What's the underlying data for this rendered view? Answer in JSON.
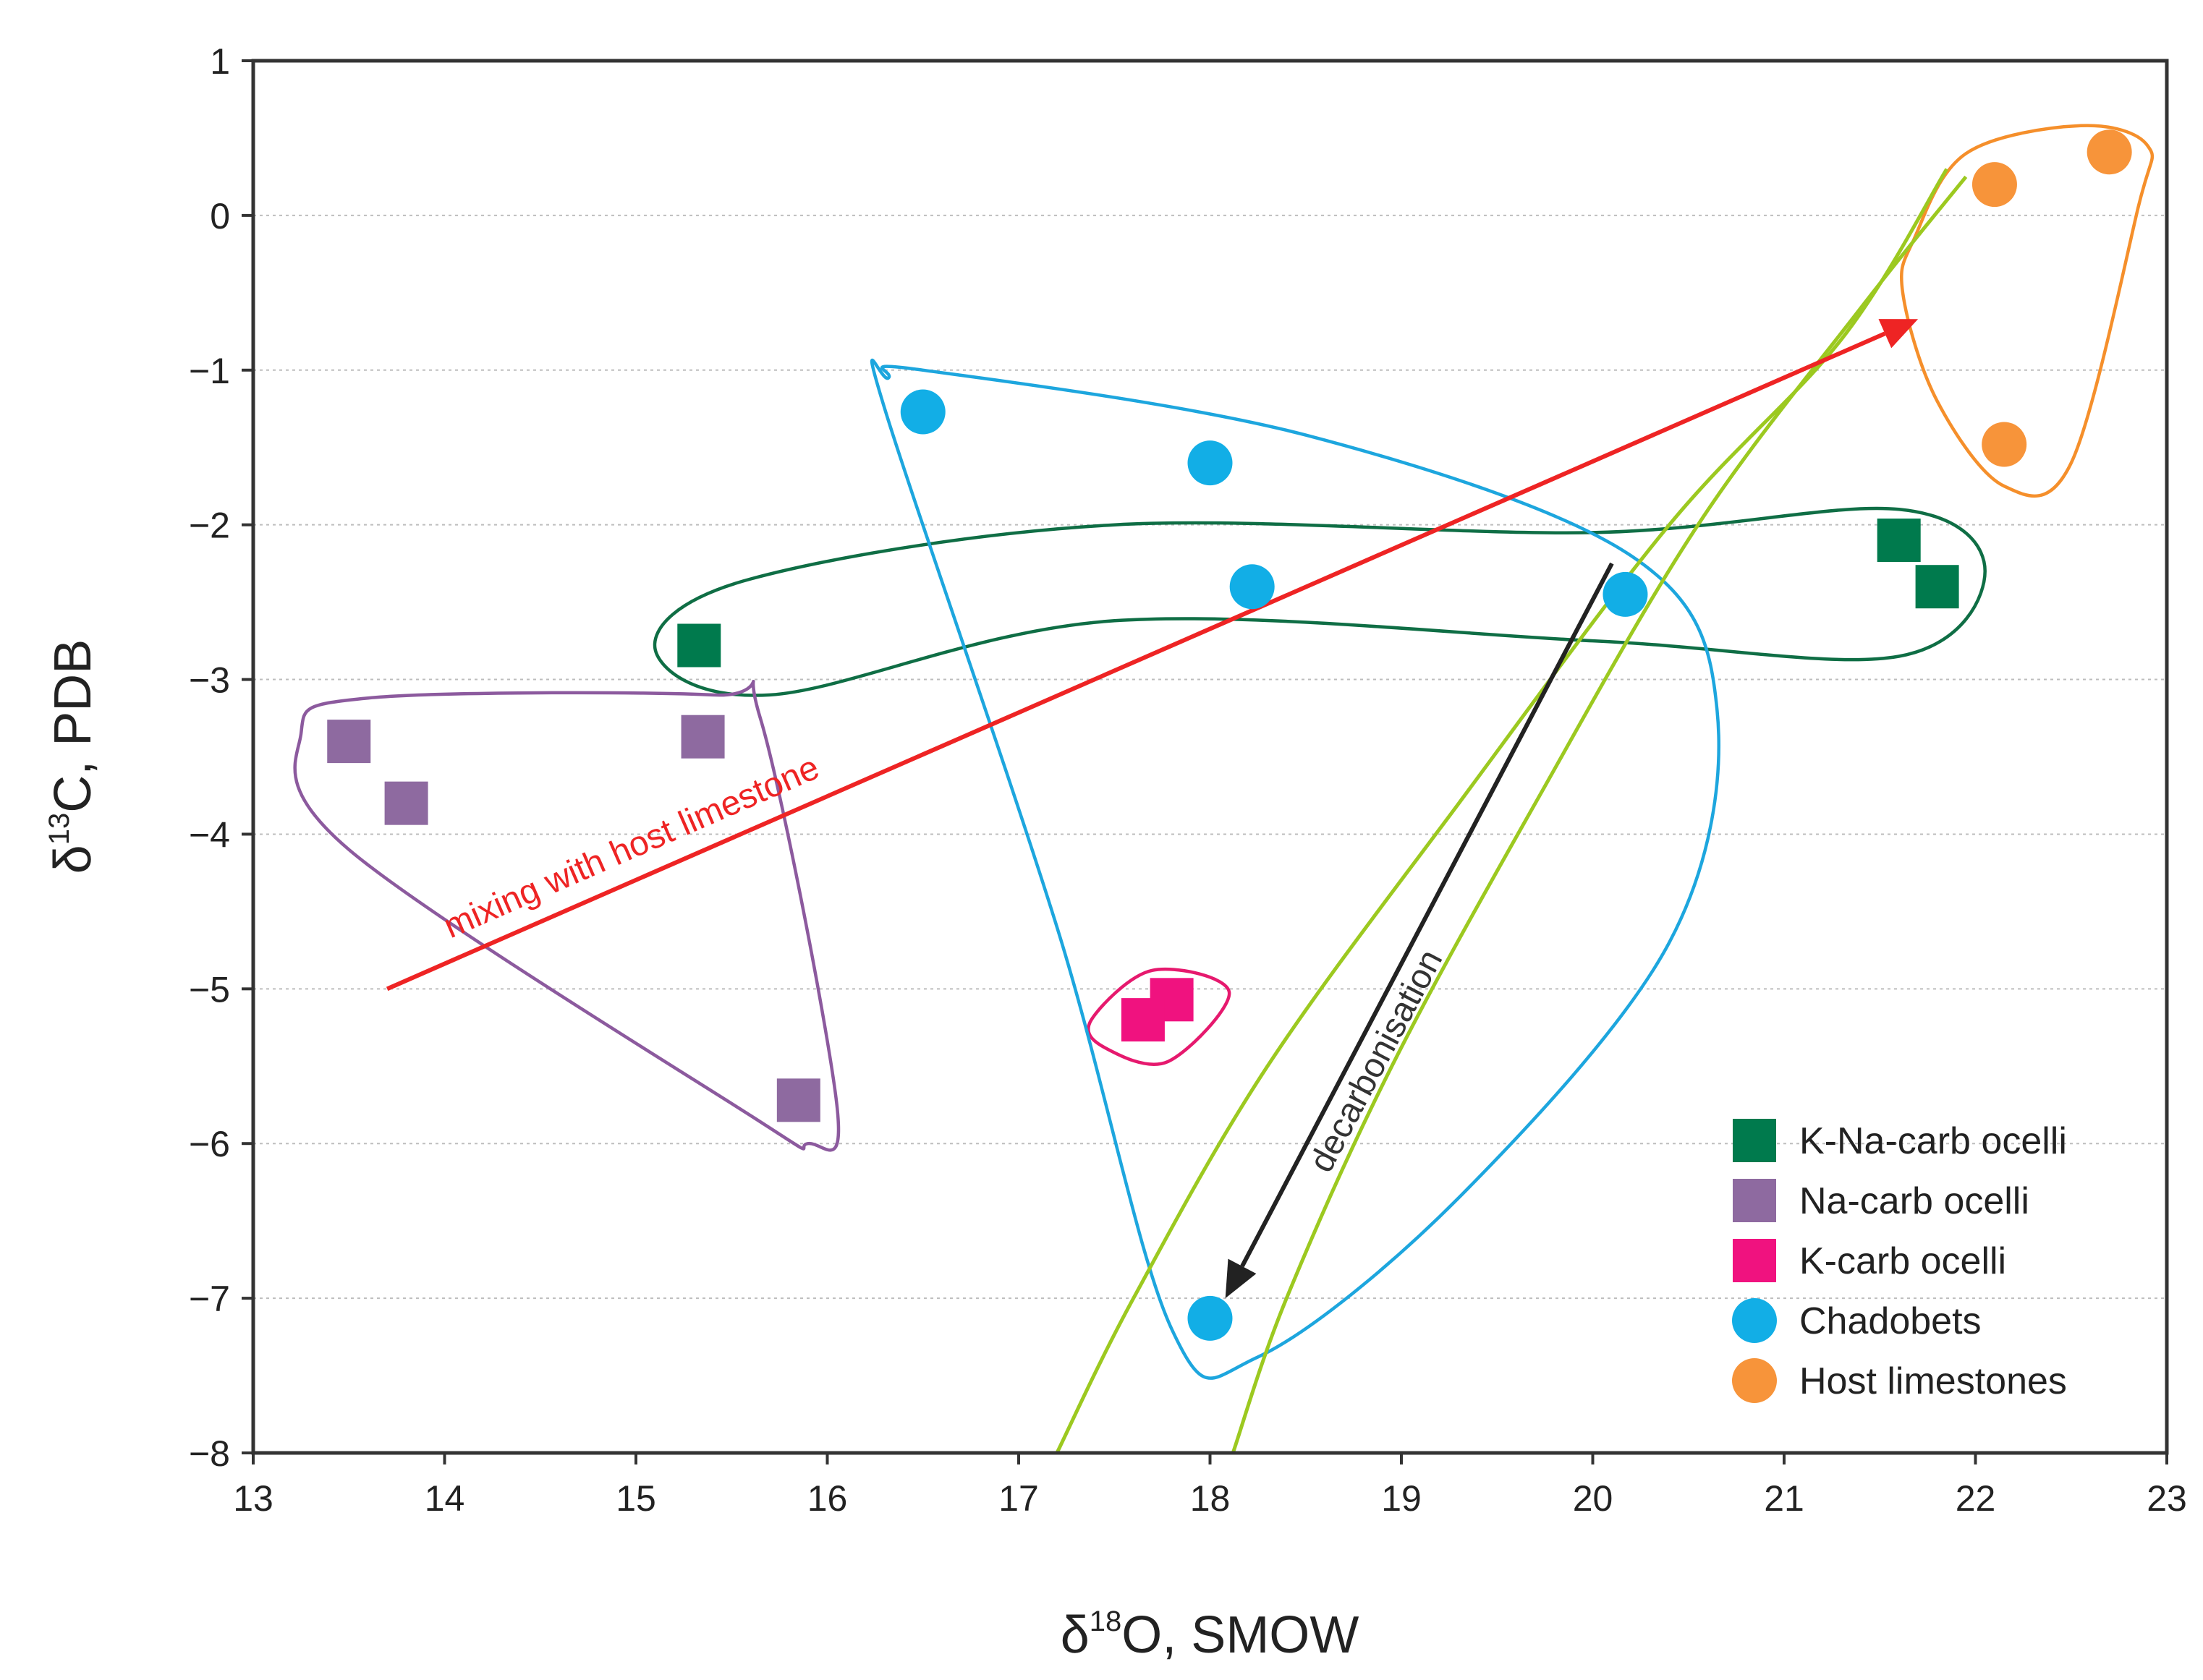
{
  "chart_data": {
    "type": "scatter",
    "title": "",
    "xlabel": {
      "symbol": "δ",
      "superscript": "18",
      "rest": "O, SMOW"
    },
    "ylabel": {
      "symbol": "δ",
      "superscript": "13",
      "rest": "C, PDB"
    },
    "xlim": [
      13,
      23
    ],
    "ylim": [
      -8,
      1
    ],
    "grid": "horizontal-dotted",
    "x_ticks": [
      "13",
      "14",
      "15",
      "16",
      "17",
      "18",
      "19",
      "20",
      "21",
      "22",
      "23"
    ],
    "y_ticks": [
      "1",
      "0",
      "−1",
      "−2",
      "−3",
      "−4",
      "−5",
      "−6",
      "−7",
      "−8"
    ],
    "legend_position": "bottom-right",
    "series": [
      {
        "name": "K-Na-carb ocelli",
        "marker": "square",
        "color": "#007A4D",
        "points": [
          [
            15.33,
            -2.78
          ],
          [
            21.6,
            -2.1
          ],
          [
            21.8,
            -2.4
          ]
        ]
      },
      {
        "name": "Na-carb ocelli",
        "marker": "square",
        "color": "#8E6AA0",
        "points": [
          [
            13.5,
            -3.4
          ],
          [
            13.8,
            -3.8
          ],
          [
            15.35,
            -3.37
          ],
          [
            15.85,
            -5.72
          ]
        ]
      },
      {
        "name": "K-carb ocelli",
        "marker": "square",
        "color": "#F0127F",
        "points": [
          [
            17.8,
            -5.07
          ],
          [
            17.65,
            -5.2
          ]
        ]
      },
      {
        "name": "Chadobets",
        "marker": "circle",
        "color": "#12AEE6",
        "points": [
          [
            16.5,
            -1.27
          ],
          [
            18.0,
            -1.6
          ],
          [
            18.22,
            -2.4
          ],
          [
            20.17,
            -2.45
          ],
          [
            18.0,
            -7.13
          ]
        ]
      },
      {
        "name": "Host limestones",
        "marker": "circle",
        "color": "#F7943A",
        "points": [
          [
            22.1,
            0.2
          ],
          [
            22.7,
            0.41
          ],
          [
            22.15,
            -1.48
          ]
        ]
      }
    ],
    "annotations": [
      {
        "text": "mixing with host limestone",
        "color": "#EE2424"
      },
      {
        "text": "decarbonisation",
        "color": "#333333"
      }
    ]
  }
}
